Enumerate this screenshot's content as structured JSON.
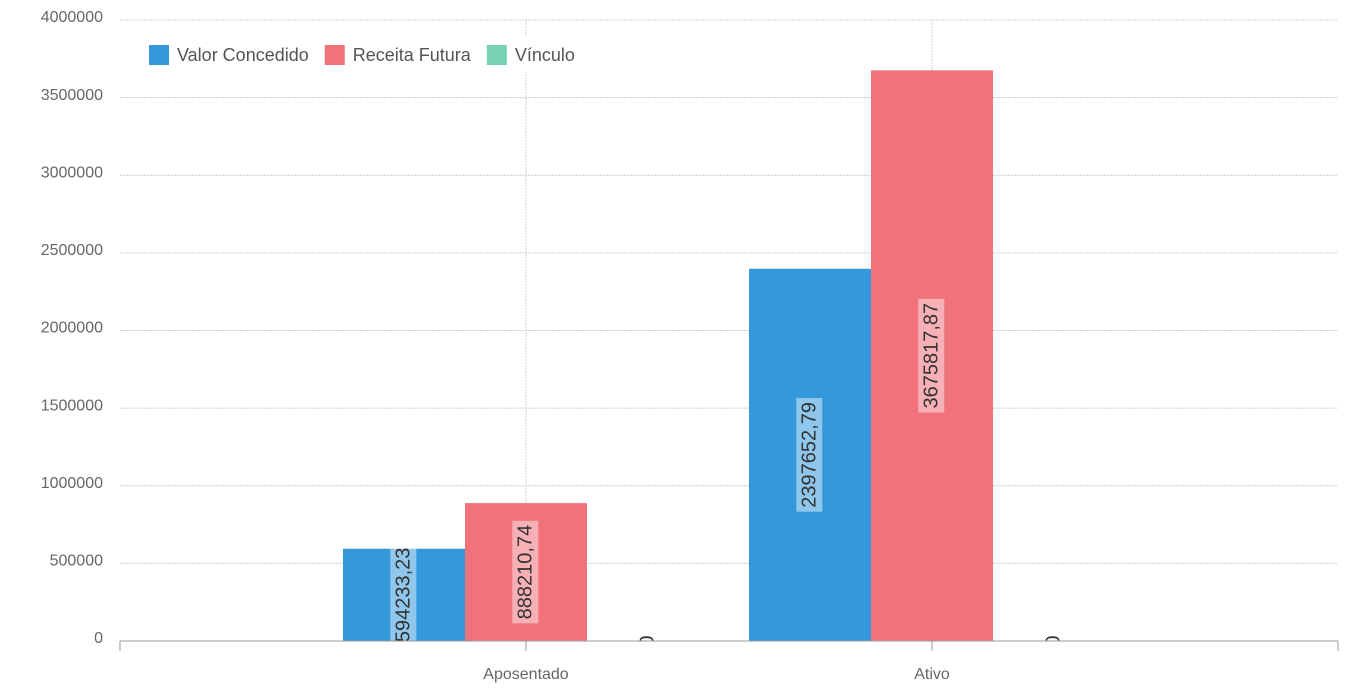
{
  "chart_data": {
    "type": "bar",
    "categories": [
      "Aposentado",
      "Ativo"
    ],
    "series": [
      {
        "name": "Valor Concedido",
        "color": "#3498db",
        "values": [
          594233.23,
          2397652.79
        ],
        "value_labels": [
          "594233,23",
          "2397652,79"
        ]
      },
      {
        "name": "Receita Futura",
        "color": "#f0727a",
        "values": [
          888210.74,
          3675817.87
        ],
        "value_labels": [
          "888210,74",
          "3675817,87"
        ]
      },
      {
        "name": "Vínculo",
        "color": "#76d1b5",
        "values": [
          0,
          0
        ]
      }
    ],
    "ylim": [
      0,
      4000000
    ],
    "yticks": [
      0,
      500000,
      1000000,
      1500000,
      2000000,
      2500000,
      3000000,
      3500000,
      4000000
    ],
    "grid": true,
    "legend": "top-left"
  }
}
